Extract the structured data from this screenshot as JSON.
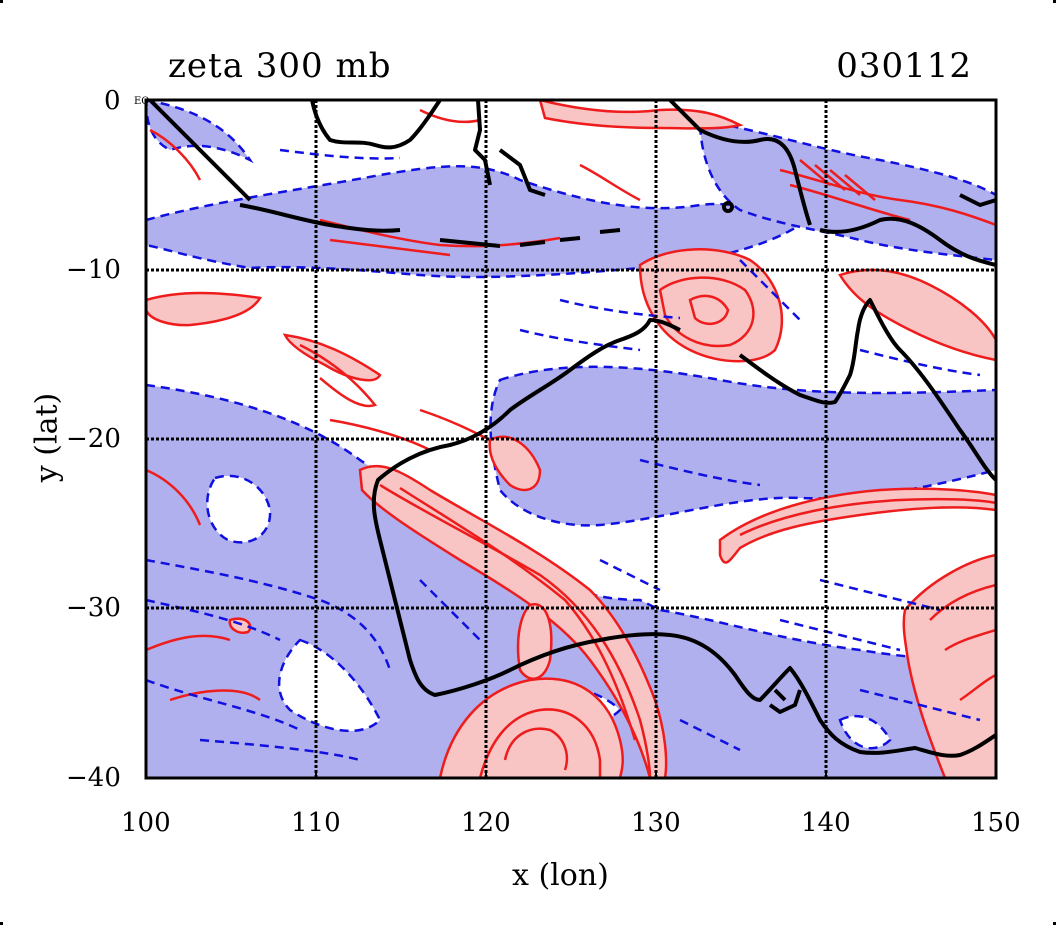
{
  "title_left": "zeta 300 mb",
  "title_right": "030112",
  "tiny_label": "EQ",
  "chart_data": {
    "type": "contour-map",
    "variable": "zeta",
    "level": "300 mb",
    "date_code": "030112",
    "xlabel": "x (lon)",
    "ylabel": "y (lat)",
    "xlim": [
      100,
      150
    ],
    "ylim": [
      -40,
      0
    ],
    "xticks": [
      100,
      110,
      120,
      130,
      140,
      150
    ],
    "yticks": [
      0,
      -10,
      -20,
      -30,
      -40
    ],
    "xtick_labels": [
      "100",
      "110",
      "120",
      "130",
      "140",
      "150"
    ],
    "ytick_labels": [
      "0",
      "−10",
      "−20",
      "−30",
      "−40"
    ],
    "grid": true,
    "colors": {
      "positive_line": "#ee1c1c",
      "positive_fill": "#f8c4c4",
      "negative_line": "#1010e0",
      "negative_fill": "#b0b0ee",
      "coastline": "#000000"
    }
  }
}
